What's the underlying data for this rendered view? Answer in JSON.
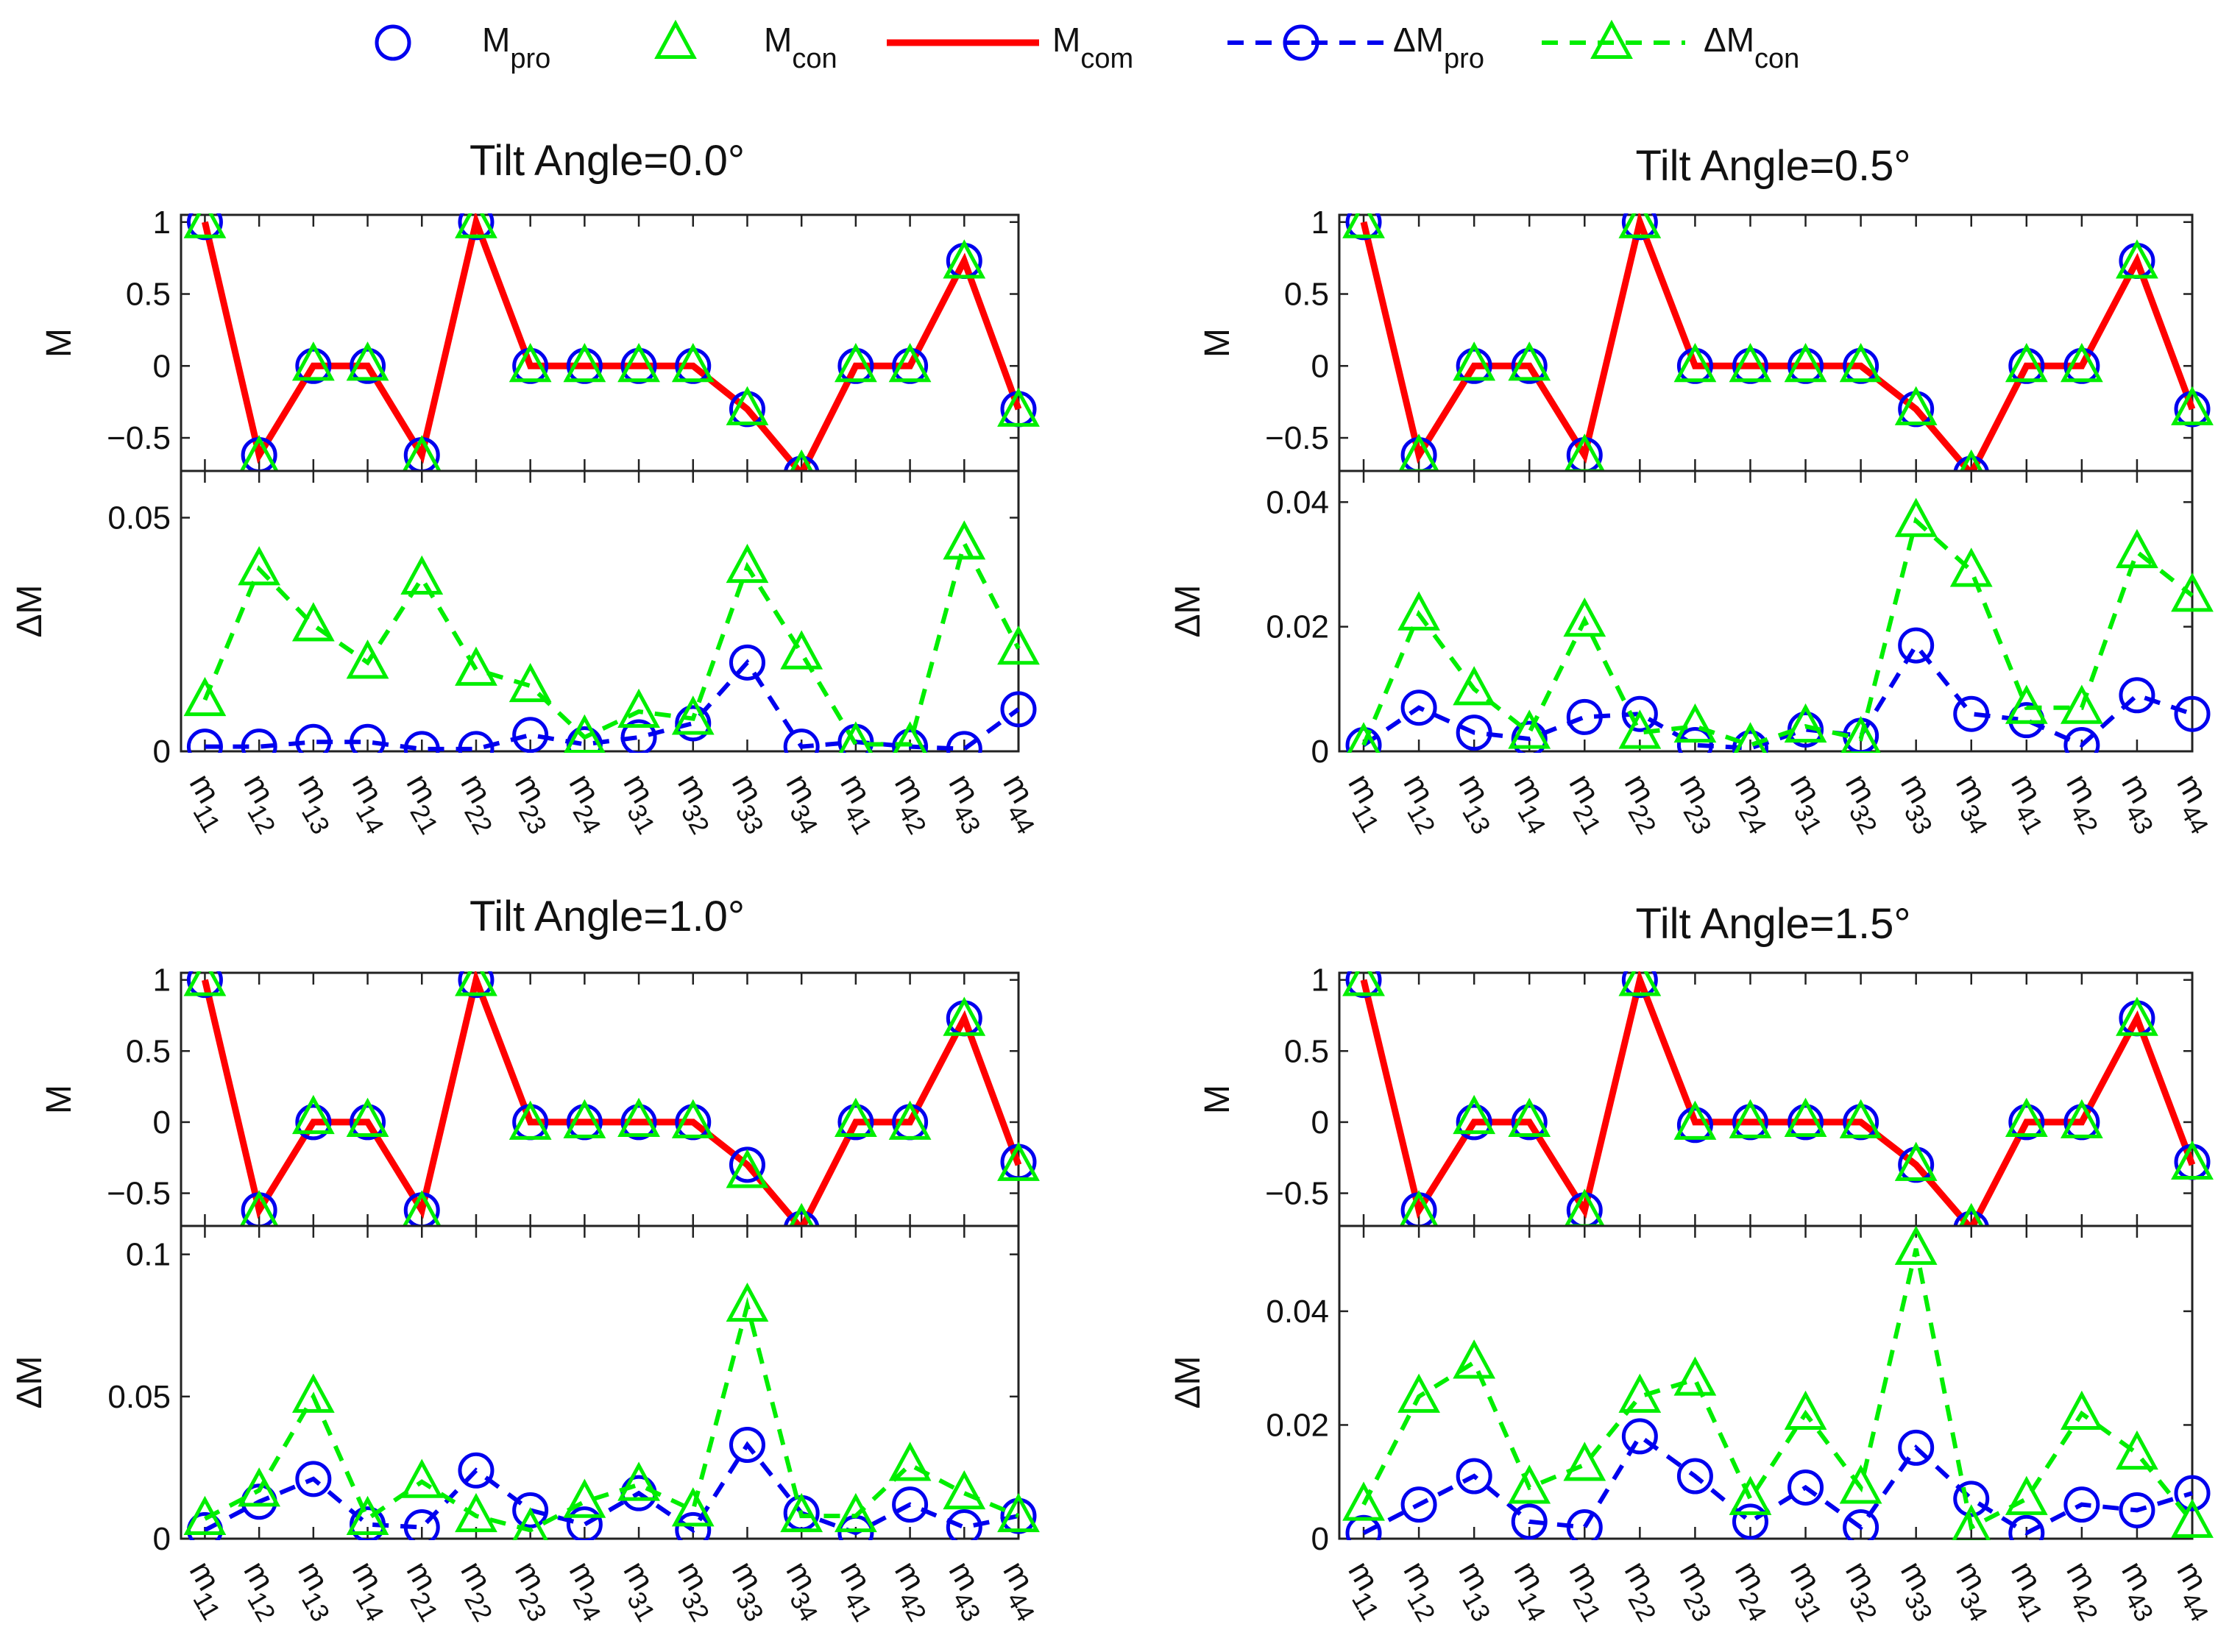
{
  "legend": [
    {
      "main": "M",
      "sub": "pro",
      "marker": "circle",
      "line": "none",
      "color": "#0000ee"
    },
    {
      "main": "M",
      "sub": "con",
      "marker": "triangle",
      "line": "none",
      "color": "#00ee00"
    },
    {
      "main": "M",
      "sub": "com",
      "marker": "none",
      "line": "solid",
      "color": "#ff0000"
    },
    {
      "main": "ΔM",
      "sub": "pro",
      "marker": "circle",
      "line": "dashed",
      "color": "#0000ee"
    },
    {
      "main": "ΔM",
      "sub": "con",
      "marker": "triangle",
      "line": "dashed",
      "color": "#00ee00"
    }
  ],
  "colors": {
    "pro": "#0000ee",
    "con": "#00ee00",
    "com": "#ff0000"
  },
  "chart_data": [
    {
      "type": "line",
      "title": "Tilt Angle=0.0°",
      "categories": [
        [
          "m",
          "11"
        ],
        [
          "m",
          "12"
        ],
        [
          "m",
          "13"
        ],
        [
          "m",
          "14"
        ],
        [
          "m",
          "21"
        ],
        [
          "m",
          "22"
        ],
        [
          "m",
          "23"
        ],
        [
          "m",
          "24"
        ],
        [
          "m",
          "31"
        ],
        [
          "m",
          "32"
        ],
        [
          "m",
          "33"
        ],
        [
          "m",
          "34"
        ],
        [
          "m",
          "41"
        ],
        [
          "m",
          "42"
        ],
        [
          "m",
          "43"
        ],
        [
          "m",
          "44"
        ]
      ],
      "M": {
        "ylabel": "M",
        "ylim": [
          -0.73,
          1.05
        ],
        "yticks": [
          "1",
          "0.5",
          "0",
          "−0.5"
        ],
        "ytick_values": [
          1,
          0.5,
          0,
          -0.5
        ],
        "series": [
          {
            "name": "M_pro",
            "values": [
              1,
              -0.62,
              0,
              0,
              -0.62,
              1,
              0,
              0,
              0,
              0,
              -0.3,
              -0.75,
              0,
              0,
              0.73,
              -0.3
            ]
          },
          {
            "name": "M_con",
            "values": [
              1,
              -0.64,
              0.01,
              0.01,
              -0.64,
              1,
              0,
              0,
              0,
              0,
              -0.3,
              -0.74,
              0,
              0,
              0.72,
              -0.31
            ]
          },
          {
            "name": "M_com",
            "values": [
              1,
              -0.62,
              0,
              0,
              -0.62,
              1,
              0,
              0,
              0,
              0,
              -0.3,
              -0.75,
              0,
              0,
              0.73,
              -0.3
            ]
          }
        ]
      },
      "dM": {
        "ylabel": "ΔM",
        "ylim": [
          0,
          0.06
        ],
        "yticks": [
          "0",
          "0.05"
        ],
        "ytick_values": [
          0,
          0.05
        ],
        "series": [
          {
            "name": "ΔM_pro",
            "values": [
              0.001,
              0.001,
              0.002,
              0.002,
              0.0005,
              0.0005,
              0.0035,
              0.0015,
              0.003,
              0.006,
              0.019,
              0.001,
              0.002,
              0.001,
              0.0005,
              0.009
            ]
          },
          {
            "name": "ΔM_con",
            "values": [
              0.011,
              0.039,
              0.027,
              0.019,
              0.037,
              0.0175,
              0.014,
              0.003,
              0.0085,
              0.007,
              0.0395,
              0.021,
              0.0015,
              0.0015,
              0.0445,
              0.022
            ]
          }
        ]
      }
    },
    {
      "type": "line",
      "title": "Tilt Angle=0.5°",
      "categories": [
        [
          "m",
          "11"
        ],
        [
          "m",
          "12"
        ],
        [
          "m",
          "13"
        ],
        [
          "m",
          "14"
        ],
        [
          "m",
          "21"
        ],
        [
          "m",
          "22"
        ],
        [
          "m",
          "23"
        ],
        [
          "m",
          "24"
        ],
        [
          "m",
          "31"
        ],
        [
          "m",
          "32"
        ],
        [
          "m",
          "33"
        ],
        [
          "m",
          "34"
        ],
        [
          "m",
          "41"
        ],
        [
          "m",
          "42"
        ],
        [
          "m",
          "43"
        ],
        [
          "m",
          "44"
        ]
      ],
      "M": {
        "ylabel": "M",
        "ylim": [
          -0.73,
          1.05
        ],
        "yticks": [
          "1",
          "0.5",
          "0",
          "−0.5"
        ],
        "ytick_values": [
          1,
          0.5,
          0,
          -0.5
        ],
        "series": [
          {
            "name": "M_pro",
            "values": [
              1,
              -0.62,
              0,
              0,
              -0.62,
              1,
              0,
              0,
              0,
              0,
              -0.3,
              -0.75,
              0,
              0,
              0.73,
              -0.3
            ]
          },
          {
            "name": "M_con",
            "values": [
              1,
              -0.63,
              0.01,
              0.01,
              -0.63,
              1,
              0,
              0,
              0,
              0,
              -0.3,
              -0.74,
              0,
              0,
              0.72,
              -0.3
            ]
          },
          {
            "name": "M_com",
            "values": [
              1,
              -0.62,
              0,
              0,
              -0.62,
              1,
              0,
              0,
              0,
              0,
              -0.3,
              -0.75,
              0,
              0,
              0.73,
              -0.3
            ]
          }
        ]
      },
      "dM": {
        "ylabel": "ΔM",
        "ylim": [
          0,
          0.045
        ],
        "yticks": [
          "0",
          "0.02",
          "0.04"
        ],
        "ytick_values": [
          0,
          0.02,
          0.04
        ],
        "series": [
          {
            "name": "ΔM_pro",
            "values": [
              0.001,
              0.007,
              0.003,
              0.002,
              0.0055,
              0.006,
              0.001,
              0.0005,
              0.0035,
              0.0025,
              0.017,
              0.006,
              0.005,
              0.001,
              0.009,
              0.006
            ]
          },
          {
            "name": "ΔM_con",
            "values": [
              0.001,
              0.022,
              0.01,
              0.003,
              0.021,
              0.003,
              0.004,
              0.001,
              0.004,
              0.002,
              0.037,
              0.029,
              0.007,
              0.007,
              0.032,
              0.025
            ]
          }
        ]
      }
    },
    {
      "type": "line",
      "title": "Tilt Angle=1.0°",
      "categories": [
        [
          "m",
          "11"
        ],
        [
          "m",
          "12"
        ],
        [
          "m",
          "13"
        ],
        [
          "m",
          "14"
        ],
        [
          "m",
          "21"
        ],
        [
          "m",
          "22"
        ],
        [
          "m",
          "23"
        ],
        [
          "m",
          "24"
        ],
        [
          "m",
          "31"
        ],
        [
          "m",
          "32"
        ],
        [
          "m",
          "33"
        ],
        [
          "m",
          "34"
        ],
        [
          "m",
          "41"
        ],
        [
          "m",
          "42"
        ],
        [
          "m",
          "43"
        ],
        [
          "m",
          "44"
        ]
      ],
      "M": {
        "ylabel": "M",
        "ylim": [
          -0.73,
          1.05
        ],
        "yticks": [
          "1",
          "0.5",
          "0",
          "−0.5"
        ],
        "ytick_values": [
          1,
          0.5,
          0,
          -0.5
        ],
        "series": [
          {
            "name": "M_pro",
            "values": [
              1,
              -0.62,
              0,
              0,
              -0.62,
              1,
              0,
              0,
              0,
              0,
              -0.3,
              -0.75,
              0,
              0,
              0.73,
              -0.28
            ]
          },
          {
            "name": "M_con",
            "values": [
              1,
              -0.64,
              0.03,
              0.01,
              -0.64,
              1,
              -0.01,
              0,
              0.01,
              0,
              -0.35,
              -0.73,
              0.01,
              -0.01,
              0.72,
              -0.3
            ]
          },
          {
            "name": "M_com",
            "values": [
              1,
              -0.62,
              0,
              0,
              -0.62,
              1,
              0,
              0,
              0,
              0,
              -0.3,
              -0.75,
              0,
              0,
              0.73,
              -0.3
            ]
          }
        ]
      },
      "dM": {
        "ylabel": "ΔM",
        "ylim": [
          0,
          0.11
        ],
        "yticks": [
          "0",
          "0.05",
          "0.1"
        ],
        "ytick_values": [
          0,
          0.05,
          0.1
        ],
        "series": [
          {
            "name": "ΔM_pro",
            "values": [
              0.003,
              0.013,
              0.021,
              0.005,
              0.004,
              0.024,
              0.01,
              0.005,
              0.016,
              0.003,
              0.033,
              0.009,
              0.002,
              0.012,
              0.004,
              0.008
            ]
          },
          {
            "name": "ΔM_con",
            "values": [
              0.007,
              0.017,
              0.05,
              0.007,
              0.02,
              0.008,
              0.003,
              0.013,
              0.019,
              0.01,
              0.082,
              0.008,
              0.008,
              0.026,
              0.016,
              0.008
            ]
          }
        ]
      }
    },
    {
      "type": "line",
      "title": "Tilt Angle=1.5°",
      "categories": [
        [
          "m",
          "11"
        ],
        [
          "m",
          "12"
        ],
        [
          "m",
          "13"
        ],
        [
          "m",
          "14"
        ],
        [
          "m",
          "21"
        ],
        [
          "m",
          "22"
        ],
        [
          "m",
          "23"
        ],
        [
          "m",
          "24"
        ],
        [
          "m",
          "31"
        ],
        [
          "m",
          "32"
        ],
        [
          "m",
          "33"
        ],
        [
          "m",
          "34"
        ],
        [
          "m",
          "41"
        ],
        [
          "m",
          "42"
        ],
        [
          "m",
          "43"
        ],
        [
          "m",
          "44"
        ]
      ],
      "M": {
        "ylabel": "M",
        "ylim": [
          -0.73,
          1.05
        ],
        "yticks": [
          "1",
          "0.5",
          "0",
          "−0.5"
        ],
        "ytick_values": [
          1,
          0.5,
          0,
          -0.5
        ],
        "series": [
          {
            "name": "M_pro",
            "values": [
              1,
              -0.62,
              0,
              0,
              -0.62,
              1,
              -0.02,
              0,
              0,
              0,
              -0.3,
              -0.75,
              0,
              0,
              0.73,
              -0.28
            ]
          },
          {
            "name": "M_con",
            "values": [
              1,
              -0.64,
              0.03,
              0.01,
              -0.63,
              1,
              -0.01,
              0,
              0.01,
              0,
              -0.3,
              -0.73,
              0.01,
              0,
              0.72,
              -0.29
            ]
          },
          {
            "name": "M_com",
            "values": [
              1,
              -0.62,
              0,
              0,
              -0.62,
              1,
              0,
              0,
              0,
              0,
              -0.3,
              -0.75,
              0,
              0,
              0.73,
              -0.3
            ]
          }
        ]
      },
      "dM": {
        "ylabel": "ΔM",
        "ylim": [
          0,
          0.055
        ],
        "yticks": [
          "0",
          "0.02",
          "0.04"
        ],
        "ytick_values": [
          0,
          0.02,
          0.04
        ],
        "series": [
          {
            "name": "ΔM_pro",
            "values": [
              0.001,
              0.006,
              0.011,
              0.003,
              0.002,
              0.018,
              0.011,
              0.003,
              0.009,
              0.002,
              0.016,
              0.007,
              0.001,
              0.006,
              0.005,
              0.008
            ]
          },
          {
            "name": "ΔM_con",
            "values": [
              0.006,
              0.025,
              0.031,
              0.009,
              0.013,
              0.025,
              0.028,
              0.007,
              0.022,
              0.009,
              0.051,
              0.002,
              0.007,
              0.022,
              0.015,
              0.003
            ]
          }
        ]
      }
    }
  ]
}
